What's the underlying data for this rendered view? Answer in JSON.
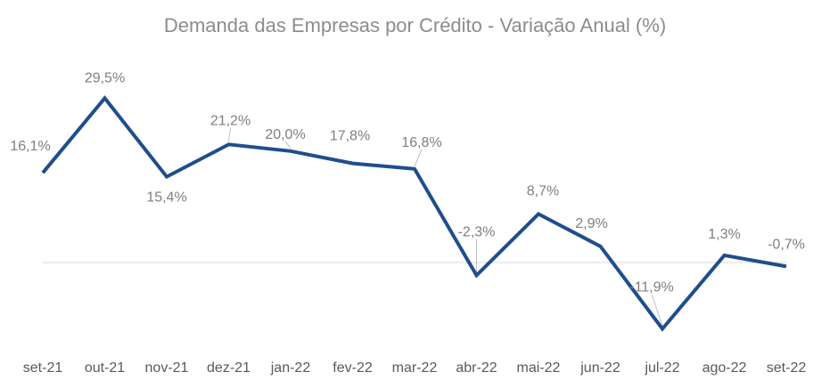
{
  "chart_data": {
    "type": "line",
    "title": "Demanda das Empresas por Crédito - Variação Anual (%)",
    "xlabel": "",
    "ylabel": "",
    "categories": [
      "set-21",
      "out-21",
      "nov-21",
      "dez-21",
      "jan-22",
      "fev-22",
      "mar-22",
      "abr-22",
      "mai-22",
      "jun-22",
      "jul-22",
      "ago-22",
      "set-22"
    ],
    "series": [
      {
        "values": [
          16.1,
          29.5,
          15.4,
          21.2,
          20.0,
          17.8,
          16.8,
          -2.3,
          8.7,
          2.9,
          -11.9,
          1.3,
          -0.7
        ]
      }
    ],
    "data_labels": [
      "16,1%",
      "29,5%",
      "15,4%",
      "21,2%",
      "20,0%",
      "17,8%",
      "16,8%",
      "-2,3%",
      "8,7%",
      "2,9%",
      "-11,9%",
      "1,3%",
      "-0,7%"
    ],
    "ylim": [
      -20,
      35
    ],
    "grid": false,
    "legend": "none",
    "colors": {
      "line": "#1f4e8c",
      "zero_line": "#d9d9d9",
      "title": "#8c8c8c",
      "labels": "#7f7f7f",
      "ticks": "#595959"
    }
  }
}
